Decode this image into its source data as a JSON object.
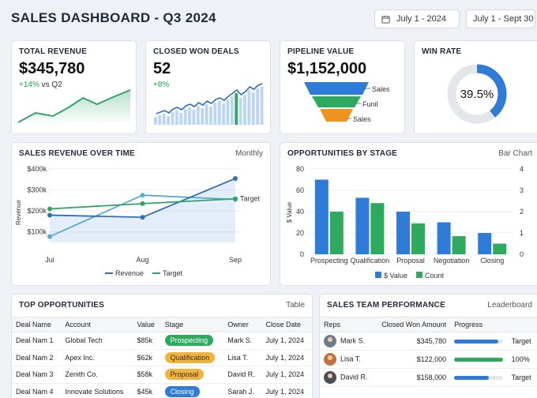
{
  "header": {
    "title": "SALES DASHBOARD - Q3 2024",
    "date_start": "July 1 - 2024",
    "date_range": "July 1 - Sept 30"
  },
  "kpis": {
    "revenue": {
      "title": "TOTAL REVENUE",
      "value": "$345,780",
      "delta": "+14%",
      "delta_suffix": "vs Q2"
    },
    "deals": {
      "title": "CLOSED WON DEALS",
      "value": "52",
      "delta": "+8%"
    },
    "pipeline": {
      "title": "PIPELINE VALUE",
      "value": "$1,152,000",
      "funnel": [
        "Sales",
        "Funil",
        "Sales"
      ]
    },
    "winrate": {
      "title": "WIN RATE",
      "value": "39.5%",
      "fraction": 0.395
    }
  },
  "revenue_chart": {
    "title": "SALES REVENUE OVER TIME",
    "mode": "Monthly"
  },
  "stage_chart": {
    "title": "OPPORTUNITIES BY STAGE",
    "mode": "Bar Chart"
  },
  "chart_data": [
    {
      "type": "line",
      "title": "SALES REVENUE OVER TIME",
      "ylabel": "Revenue",
      "categories": [
        "Jul",
        "Aug",
        "Sep"
      ],
      "y_ticks": [
        "$400k",
        "$300k",
        "$200k",
        "$100k"
      ],
      "ylim": [
        50000,
        400000
      ],
      "series": [
        {
          "name": "Revenue",
          "values": [
            78000,
            275000,
            255000
          ],
          "color": "#5aa8d6"
        },
        {
          "name": "Revenue",
          "values": [
            180000,
            170000,
            355000
          ],
          "color": "#2f6fb6"
        },
        {
          "name": "Target",
          "values": [
            210000,
            235000,
            258000
          ],
          "color": "#2ea66a"
        }
      ],
      "legend": [
        "Revenue",
        "Target"
      ],
      "annotation": "Target"
    },
    {
      "type": "bar",
      "title": "OPPORTUNITIES BY STAGE",
      "ylabel": "$ Value",
      "categories": [
        "Prospecting",
        "Qualification",
        "Proposal",
        "Negotiation",
        "Closing"
      ],
      "y_ticks": [
        "80",
        "60",
        "40",
        "20",
        "0"
      ],
      "y2_ticks": [
        "4",
        "3",
        "2",
        "1",
        "0"
      ],
      "ylim": [
        0,
        80
      ],
      "y2lim": [
        0,
        4
      ],
      "series": [
        {
          "name": "$ Value",
          "values": [
            70,
            53,
            40,
            30,
            20
          ],
          "color": "#2f7bd8"
        },
        {
          "name": "Count",
          "values": [
            2,
            2.4,
            1.45,
            0.85,
            0.5
          ],
          "color": "#2eaa5f"
        }
      ]
    }
  ],
  "opportunities": {
    "title": "TOP OPPORTUNITIES",
    "mode": "Table",
    "columns": [
      "Deal Name",
      "Account",
      "Value",
      "Stage",
      "Owner",
      "Close Date"
    ],
    "rows": [
      {
        "deal": "Deal Nam 1",
        "account": "Global Tech",
        "value": "$85k",
        "stage": "Prospecting",
        "owner": "Mark S.",
        "date": "July 1, 2024",
        "color": "#2eaa5f",
        "text": "#fff"
      },
      {
        "deal": "Deal Nam 2",
        "account": "Apex Inc.",
        "value": "$62k",
        "stage": "Qualification",
        "owner": "Lisa T.",
        "date": "July 1, 2024",
        "color": "#f2b33d",
        "text": "#333"
      },
      {
        "deal": "Deal Nam 3",
        "account": "Zenith Co.",
        "value": "$58k",
        "stage": "Proposal",
        "owner": "David R.",
        "date": "July 1, 2024",
        "color": "#f2b33d",
        "text": "#333"
      },
      {
        "deal": "Deal Nam 4",
        "account": "Innovate Solutions",
        "value": "$45k",
        "stage": "Closing",
        "owner": "Sarah J.",
        "date": "July 1, 2024",
        "color": "#2f7bd8",
        "text": "#fff"
      }
    ]
  },
  "team": {
    "title": "SALES TEAM PERFORMANCE",
    "mode": "Leaderboard",
    "columns": [
      "Reps",
      "Closed Won Amount",
      "Progress"
    ],
    "rows": [
      {
        "name": "Mark S.",
        "amount": "$345,780",
        "label": "Target",
        "progress": 0.9,
        "color": "#2f7bd8",
        "avatar": "#6b7c93"
      },
      {
        "name": "Lisa T.",
        "amount": "$122,000",
        "label": "100%",
        "progress": 1.0,
        "color": "#2eaa5f",
        "avatar": "#c2703d"
      },
      {
        "name": "David R.",
        "amount": "$158,000",
        "label": "Target",
        "progress": 0.7,
        "color": "#2f7bd8",
        "avatar": "#4a4f57"
      }
    ]
  }
}
